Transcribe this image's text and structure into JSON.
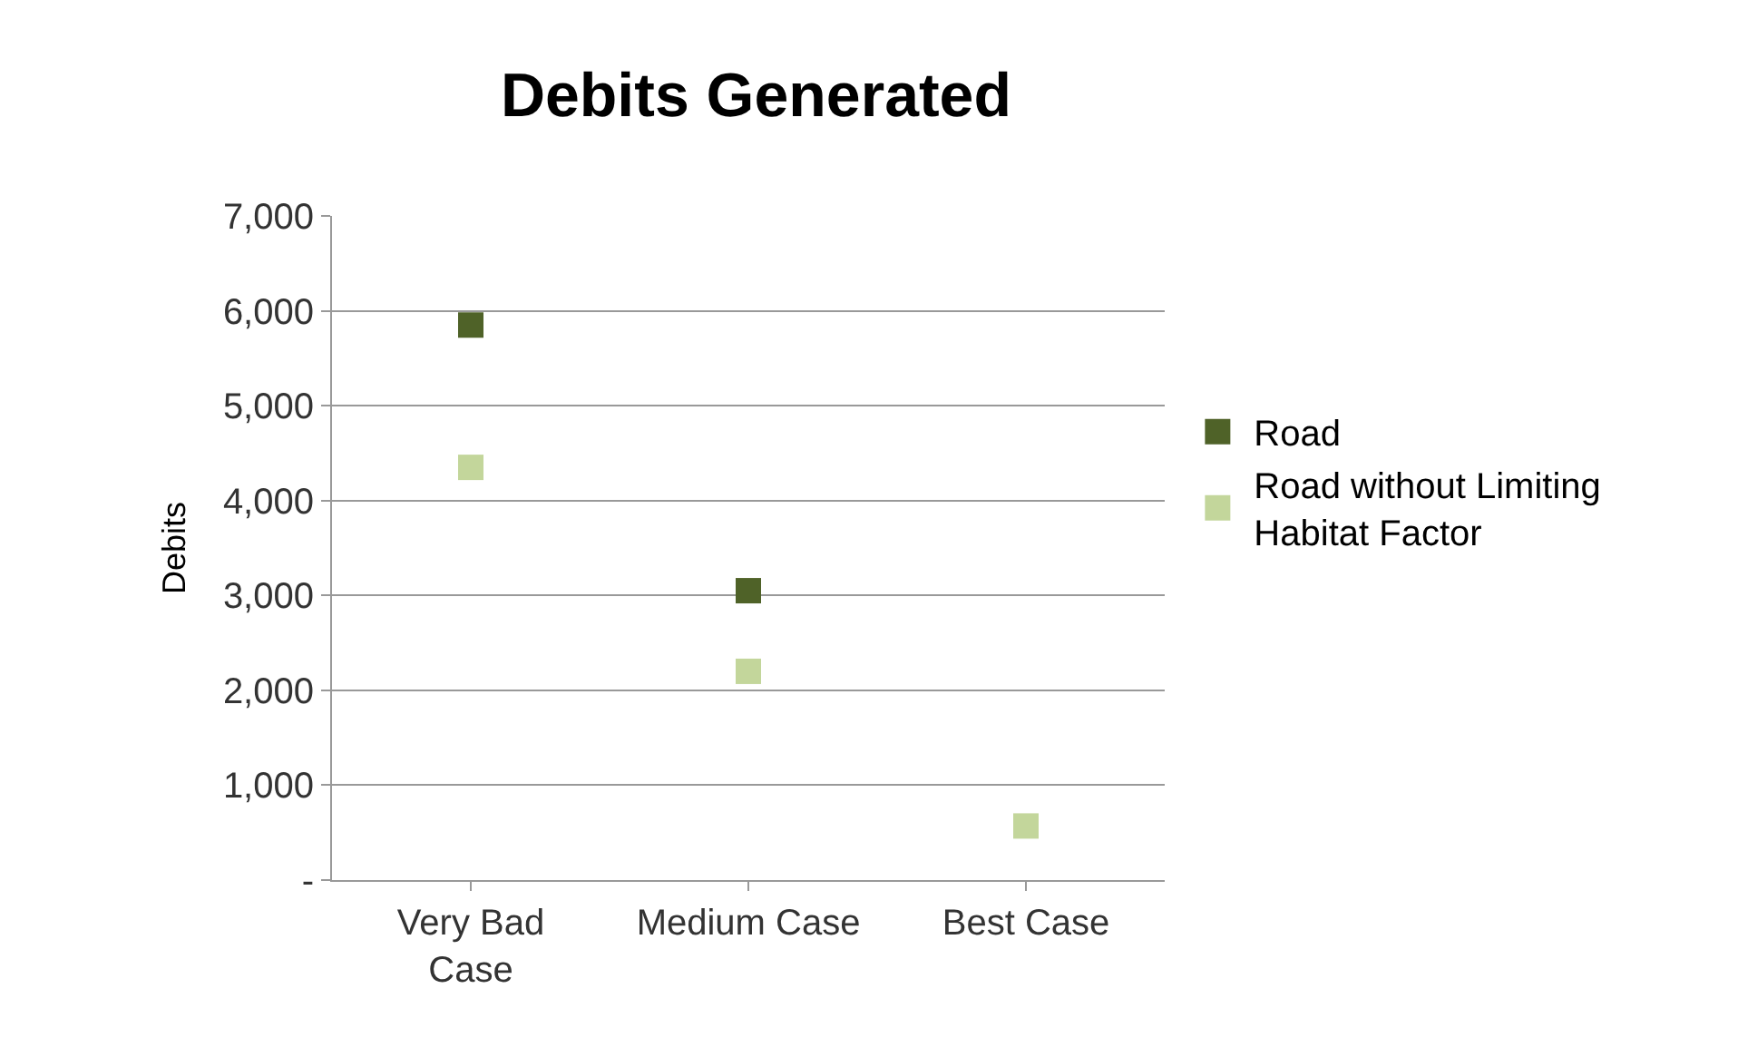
{
  "chart_data": {
    "type": "scatter",
    "title": "Debits Generated",
    "ylabel": "Debits",
    "categories": [
      "Very Bad Case",
      "Medium Case",
      "Best Case"
    ],
    "series": [
      {
        "name": "Road",
        "color": "#4f6228",
        "values": [
          5850,
          3050,
          null
        ]
      },
      {
        "name": "Road without Limiting Habitat Factor",
        "color": "#c3d69b",
        "values": [
          4350,
          2200,
          570
        ]
      }
    ],
    "ylim": [
      0,
      7000
    ],
    "yticks": [
      {
        "value": 0,
        "label": "-"
      },
      {
        "value": 1000,
        "label": "1,000"
      },
      {
        "value": 2000,
        "label": "2,000"
      },
      {
        "value": 3000,
        "label": "3,000"
      },
      {
        "value": 4000,
        "label": "4,000"
      },
      {
        "value": 5000,
        "label": "5,000"
      },
      {
        "value": 6000,
        "label": "6,000"
      },
      {
        "value": 7000,
        "label": "7,000"
      }
    ],
    "grid": "y",
    "legend": "right",
    "marker": "square"
  }
}
